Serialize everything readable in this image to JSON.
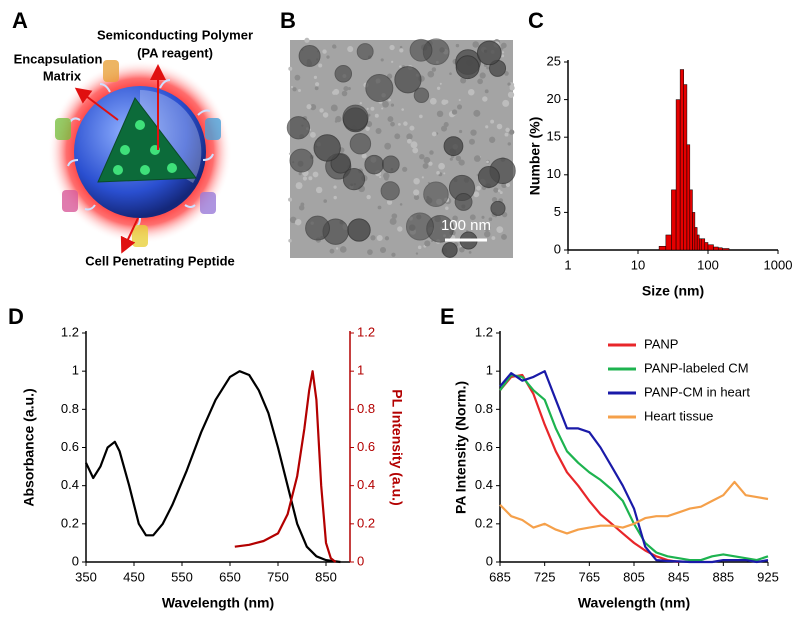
{
  "diagram": {
    "panel": "A",
    "polymer_label": [
      "Semiconducting Polymer",
      "(PA reagent)"
    ],
    "matrix_label": [
      "Encapsulation",
      "Matrix"
    ],
    "peptide_label": "Cell Penetrating Peptide"
  },
  "image": {
    "panel": "B",
    "scale_bar": "100 nm"
  },
  "chart_data": [
    {
      "type": "histogram",
      "panel": "C",
      "x_label": "Size (nm)",
      "y_label": "Number (%)",
      "xlog": true,
      "xlim": [
        1,
        1000
      ],
      "xticks": [
        1,
        10,
        100,
        1000
      ],
      "ylim": [
        0,
        25
      ],
      "yticks": [
        0,
        5,
        10,
        15,
        20,
        25
      ],
      "color": "#e60000",
      "bins": [
        20,
        25,
        30,
        35,
        40,
        45,
        50,
        55,
        60,
        65,
        70,
        75,
        80,
        90,
        100,
        120,
        140,
        160,
        200
      ],
      "values": [
        0.5,
        2,
        8,
        20,
        24,
        22,
        14,
        8,
        5,
        3,
        2,
        1.5,
        1.5,
        1,
        0.7,
        0.4,
        0.3,
        0.2
      ]
    },
    {
      "type": "line",
      "panel": "D",
      "x_label": "Wavelength (nm)",
      "y_label": "Absorbance (a.u.)",
      "y2_label": "PL Intensity (a.u.)",
      "xlim": [
        350,
        900
      ],
      "xticks": [
        350,
        450,
        550,
        650,
        750,
        850
      ],
      "ylim": [
        0,
        1.2
      ],
      "yticks": [
        0,
        0.2,
        0.4,
        0.6,
        0.8,
        1,
        1.2
      ],
      "y2lim": [
        0,
        1.2
      ],
      "y2ticks": [
        0,
        0.2,
        0.4,
        0.6,
        0.8,
        1,
        1.2
      ],
      "series": [
        {
          "color": "#000000",
          "x": [
            350,
            365,
            380,
            395,
            410,
            420,
            440,
            460,
            475,
            490,
            510,
            530,
            560,
            590,
            620,
            650,
            670,
            690,
            710,
            730,
            750,
            770,
            790,
            810,
            830,
            850,
            880
          ],
          "values": [
            0.52,
            0.44,
            0.5,
            0.6,
            0.63,
            0.58,
            0.4,
            0.2,
            0.14,
            0.14,
            0.2,
            0.3,
            0.48,
            0.68,
            0.85,
            0.97,
            1.0,
            0.98,
            0.9,
            0.78,
            0.6,
            0.4,
            0.2,
            0.08,
            0.03,
            0.01,
            0
          ]
        },
        {
          "color": "#b30000",
          "axis": "y2",
          "x": [
            660,
            690,
            720,
            750,
            770,
            790,
            805,
            815,
            822,
            830,
            840,
            850,
            860,
            870
          ],
          "values": [
            0.08,
            0.09,
            0.11,
            0.15,
            0.25,
            0.45,
            0.7,
            0.9,
            1.0,
            0.85,
            0.4,
            0.1,
            0.02,
            0
          ]
        }
      ]
    },
    {
      "type": "line",
      "panel": "E",
      "x_label": "Wavelength (nm)",
      "y_label": "PA Intensity (Norm.)",
      "xlim": [
        685,
        925
      ],
      "xticks": [
        685,
        725,
        765,
        805,
        845,
        885,
        925
      ],
      "ylim": [
        0,
        1.2
      ],
      "yticks": [
        0,
        0.2,
        0.4,
        0.6,
        0.8,
        1,
        1.2
      ],
      "legend": "top-right",
      "x": [
        685,
        695,
        705,
        715,
        725,
        735,
        745,
        755,
        765,
        775,
        785,
        795,
        805,
        815,
        825,
        835,
        845,
        855,
        865,
        875,
        885,
        895,
        905,
        915,
        925
      ],
      "series": [
        {
          "name": "PANP",
          "color": "#e8262a",
          "values": [
            0.9,
            0.97,
            0.98,
            0.88,
            0.72,
            0.58,
            0.47,
            0.4,
            0.32,
            0.25,
            0.2,
            0.15,
            0.1,
            0.06,
            0.03,
            0.01,
            0,
            null,
            null,
            null,
            null,
            null,
            null,
            null,
            null
          ]
        },
        {
          "name": "PANP-labeled CM",
          "color": "#1db34f",
          "values": [
            0.9,
            0.98,
            0.97,
            0.9,
            0.85,
            0.7,
            0.58,
            0.52,
            0.47,
            0.43,
            0.38,
            0.32,
            0.2,
            0.1,
            0.05,
            0.03,
            0.02,
            0.01,
            0.01,
            0.03,
            0.04,
            0.03,
            0.02,
            0.01,
            0.03
          ]
        },
        {
          "name": "PANP-CM in heart",
          "color": "#1a1aa8",
          "values": [
            0.92,
            0.99,
            0.95,
            0.97,
            1.0,
            0.85,
            0.7,
            0.7,
            0.68,
            0.6,
            0.5,
            0.4,
            0.28,
            0.08,
            0.01,
            0.005,
            0.003,
            0,
            0,
            0,
            0.01,
            0.01,
            0.01,
            0,
            0.01
          ]
        },
        {
          "name": "Heart tissue",
          "color": "#f5a04a",
          "values": [
            0.3,
            0.24,
            0.22,
            0.18,
            0.2,
            0.17,
            0.15,
            0.17,
            0.18,
            0.19,
            0.19,
            0.18,
            0.2,
            0.23,
            0.24,
            0.24,
            0.26,
            0.28,
            0.29,
            0.32,
            0.35,
            0.42,
            0.35,
            0.34,
            0.33
          ]
        }
      ]
    }
  ]
}
